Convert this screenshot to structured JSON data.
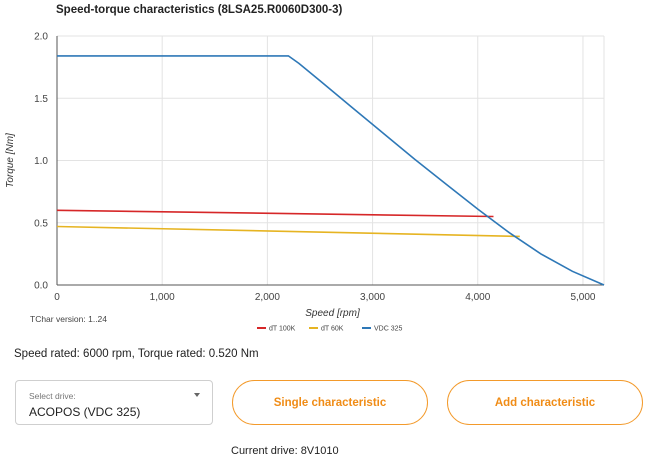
{
  "chart_data": {
    "type": "line",
    "title": "Speed-torque characteristics (8LSA25.R0060D300-3)",
    "xlabel": "Speed [rpm]",
    "ylabel": "Torque [Nm]",
    "xlim": [
      0,
      5200
    ],
    "ylim": [
      0,
      2.0
    ],
    "x_ticks": [
      "0",
      "1,000",
      "2,000",
      "3,000",
      "4,000",
      "5,000"
    ],
    "x_tick_values": [
      0,
      1000,
      2000,
      3000,
      4000,
      5000
    ],
    "y_ticks": [
      "0.0",
      "0.5",
      "1.0",
      "1.5",
      "2.0"
    ],
    "y_tick_values": [
      0,
      0.5,
      1.0,
      1.5,
      2.0
    ],
    "grid": true,
    "legend_position": "bottom",
    "series": [
      {
        "name": "dT 100K",
        "color": "#d62728",
        "x": [
          0,
          4150
        ],
        "y": [
          0.6,
          0.55
        ]
      },
      {
        "name": "dT 60K",
        "color": "#e6b422",
        "x": [
          0,
          4400
        ],
        "y": [
          0.47,
          0.39
        ]
      },
      {
        "name": "VDC 325",
        "color": "#2e78b7",
        "x": [
          0,
          2200,
          2300,
          2500,
          2800,
          3100,
          3400,
          3700,
          4000,
          4300,
          4600,
          4900,
          5200
        ],
        "y": [
          1.84,
          1.84,
          1.78,
          1.64,
          1.43,
          1.22,
          1.01,
          0.81,
          0.61,
          0.42,
          0.25,
          0.11,
          0.0
        ]
      }
    ]
  },
  "tchar_version": "TChar version: 1..24",
  "rated_text": "Speed rated: 6000 rpm, Torque rated: 0.520 Nm",
  "select_drive": {
    "label": "Select drive:",
    "value": "ACOPOS (VDC 325)"
  },
  "buttons": {
    "single": "Single characteristic",
    "add": "Add characteristic"
  },
  "current_drive": "Current drive: 8V1010"
}
